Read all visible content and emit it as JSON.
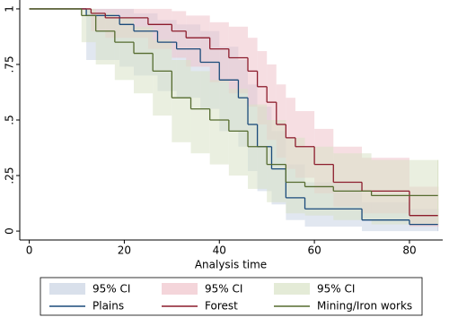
{
  "chart_data": {
    "type": "step",
    "xlabel": "Analysis time",
    "xlim": [
      -2,
      87
    ],
    "xticks": [
      0,
      20,
      40,
      60,
      80
    ],
    "ylim": [
      -0.04,
      1.04
    ],
    "yticks": [
      0,
      {
        "value": 0.25,
        "label": ".25"
      },
      {
        "value": 0.5,
        "label": ".5"
      },
      {
        "value": 0.75,
        "label": ".75"
      },
      1
    ],
    "bands": [
      {
        "name": "95% CI",
        "color": "#c9d3e3",
        "x": [
          0,
          12,
          19,
          22,
          27,
          31,
          36,
          40,
          44,
          46,
          48,
          51,
          54,
          58,
          70,
          80,
          86
        ],
        "lower": [
          1,
          0.77,
          0.74,
          0.7,
          0.63,
          0.6,
          0.55,
          0.45,
          0.38,
          0.27,
          0.18,
          0.12,
          0.05,
          0.02,
          0,
          0,
          0
        ],
        "upper": [
          1,
          1,
          1,
          0.98,
          0.95,
          0.93,
          0.9,
          0.83,
          0.77,
          0.66,
          0.56,
          0.45,
          0.3,
          0.22,
          0.13,
          0.1,
          0.1
        ]
      },
      {
        "name": "95% CI",
        "color": "#efc3cb",
        "x": [
          0,
          13,
          16,
          25,
          30,
          33,
          38,
          42,
          46,
          48,
          50,
          52,
          54,
          56,
          60,
          64,
          70,
          80,
          86
        ],
        "lower": [
          1,
          0.9,
          0.87,
          0.82,
          0.78,
          0.74,
          0.67,
          0.62,
          0.56,
          0.48,
          0.41,
          0.33,
          0.28,
          0.24,
          0.17,
          0.11,
          0.08,
          0.02,
          0.02
        ],
        "upper": [
          1,
          1,
          1,
          1,
          0.99,
          0.97,
          0.94,
          0.92,
          0.87,
          0.81,
          0.75,
          0.66,
          0.6,
          0.54,
          0.46,
          0.38,
          0.33,
          0.2,
          0.2
        ]
      },
      {
        "name": "95% CI",
        "color": "#d9e2c6",
        "x": [
          0,
          11,
          14,
          18,
          22,
          26,
          30,
          34,
          38,
          42,
          46,
          50,
          54,
          58,
          64,
          72,
          86
        ],
        "lower": [
          1,
          0.85,
          0.75,
          0.68,
          0.62,
          0.52,
          0.4,
          0.35,
          0.3,
          0.25,
          0.19,
          0.13,
          0.08,
          0.07,
          0.05,
          0.03,
          0.03
        ],
        "upper": [
          1,
          1,
          0.98,
          0.96,
          0.92,
          0.86,
          0.77,
          0.72,
          0.68,
          0.64,
          0.57,
          0.5,
          0.42,
          0.38,
          0.35,
          0.32,
          0.32
        ]
      }
    ],
    "series": [
      {
        "name": "Plains",
        "color": "#1a4a7a",
        "x": [
          0,
          12,
          19,
          22,
          27,
          31,
          36,
          40,
          44,
          46,
          48,
          51,
          54,
          58,
          70,
          80,
          86
        ],
        "values": [
          1,
          0.97,
          0.93,
          0.9,
          0.85,
          0.82,
          0.76,
          0.68,
          0.6,
          0.48,
          0.38,
          0.28,
          0.15,
          0.1,
          0.05,
          0.03,
          0.03
        ]
      },
      {
        "name": "Forest",
        "color": "#8c1c2c",
        "x": [
          0,
          13,
          16,
          25,
          30,
          33,
          38,
          42,
          46,
          48,
          50,
          52,
          54,
          56,
          60,
          64,
          70,
          80,
          86
        ],
        "values": [
          1,
          0.98,
          0.96,
          0.93,
          0.9,
          0.87,
          0.82,
          0.78,
          0.72,
          0.65,
          0.58,
          0.48,
          0.42,
          0.38,
          0.3,
          0.22,
          0.18,
          0.07,
          0.07
        ]
      },
      {
        "name": "Mining/Iron works",
        "color": "#556b2f",
        "x": [
          0,
          11,
          14,
          18,
          22,
          26,
          30,
          34,
          38,
          42,
          46,
          50,
          54,
          58,
          64,
          72,
          86
        ],
        "values": [
          1,
          0.97,
          0.9,
          0.85,
          0.8,
          0.72,
          0.6,
          0.55,
          0.5,
          0.45,
          0.38,
          0.3,
          0.22,
          0.2,
          0.18,
          0.16,
          0.16
        ]
      }
    ]
  }
}
